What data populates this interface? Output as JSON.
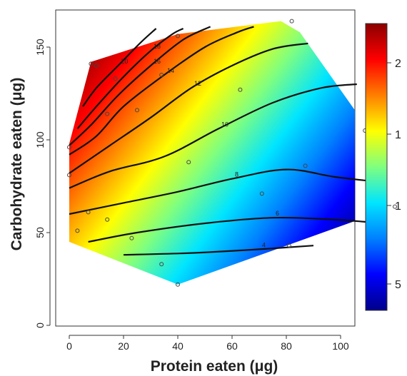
{
  "chart_data": {
    "type": "heatmap",
    "subtype": "filled-contour",
    "xlabel": "Protein eaten (μg)",
    "ylabel": "Carbohydrate eaten (μg)",
    "xlim": [
      -3,
      125
    ],
    "ylim": [
      0,
      168
    ],
    "x_ticks": [
      "0",
      "20",
      "40",
      "60",
      "80",
      "100"
    ],
    "y_ticks": [
      "0",
      "50",
      "100",
      "150"
    ],
    "grid": false,
    "legend": "colorbar-right",
    "colorbar_labels": [
      "2",
      "1",
      "1",
      "5"
    ],
    "colormap": [
      "#00008b",
      "#0000ff",
      "#0080ff",
      "#00e5ff",
      "#7fff7f",
      "#ffff00",
      "#ff7f00",
      "#ff0000",
      "#8b0000"
    ],
    "region": [
      [
        0,
        45
      ],
      [
        0,
        98
      ],
      [
        8,
        142
      ],
      [
        40,
        157
      ],
      [
        78,
        164
      ],
      [
        85,
        158
      ],
      [
        112,
        102
      ],
      [
        120,
        64
      ],
      [
        82,
        44
      ],
      [
        40,
        22
      ]
    ],
    "contour_levels": [
      "4",
      "6",
      "8",
      "10",
      "12",
      "14",
      "16",
      "18",
      "20"
    ],
    "contours": [
      {
        "level": "4",
        "points": [
          [
            20,
            38
          ],
          [
            45,
            39
          ],
          [
            70,
            41
          ],
          [
            90,
            43
          ]
        ]
      },
      {
        "level": "6",
        "points": [
          [
            7,
            45
          ],
          [
            25,
            50
          ],
          [
            50,
            55
          ],
          [
            75,
            58
          ],
          [
            98,
            57
          ],
          [
            115,
            55
          ]
        ]
      },
      {
        "level": "8",
        "points": [
          [
            0,
            60
          ],
          [
            20,
            66
          ],
          [
            40,
            72
          ],
          [
            60,
            79
          ],
          [
            80,
            84
          ],
          [
            98,
            80
          ],
          [
            116,
            77
          ]
        ]
      },
      {
        "level": "10",
        "points": [
          [
            0,
            74
          ],
          [
            15,
            83
          ],
          [
            35,
            91
          ],
          [
            55,
            106
          ],
          [
            75,
            120
          ],
          [
            93,
            128
          ],
          [
            106,
            130
          ]
        ]
      },
      {
        "level": "12",
        "points": [
          [
            0,
            82
          ],
          [
            15,
            97
          ],
          [
            30,
            112
          ],
          [
            45,
            128
          ],
          [
            60,
            140
          ],
          [
            75,
            149
          ],
          [
            88,
            152
          ]
        ]
      },
      {
        "level": "14",
        "points": [
          [
            0,
            92
          ],
          [
            10,
            102
          ],
          [
            20,
            118
          ],
          [
            35,
            135
          ],
          [
            50,
            150
          ],
          [
            62,
            158
          ],
          [
            68,
            161
          ]
        ]
      },
      {
        "level": "16",
        "points": [
          [
            0,
            97
          ],
          [
            8,
            108
          ],
          [
            18,
            124
          ],
          [
            30,
            140
          ],
          [
            42,
            154
          ],
          [
            52,
            161
          ]
        ]
      },
      {
        "level": "18",
        "points": [
          [
            3,
            106
          ],
          [
            10,
            118
          ],
          [
            20,
            134
          ],
          [
            30,
            148
          ],
          [
            38,
            157
          ],
          [
            42,
            160
          ]
        ]
      },
      {
        "level": "20",
        "points": [
          [
            5,
            118
          ],
          [
            10,
            128
          ],
          [
            18,
            140
          ],
          [
            26,
            152
          ],
          [
            32,
            160
          ]
        ]
      }
    ],
    "points": [
      [
        0,
        96
      ],
      [
        0,
        81
      ],
      [
        3,
        51
      ],
      [
        7,
        61
      ],
      [
        8,
        141
      ],
      [
        10,
        140
      ],
      [
        14,
        57
      ],
      [
        14,
        114
      ],
      [
        17,
        133
      ],
      [
        23,
        47
      ],
      [
        25,
        116
      ],
      [
        34,
        33
      ],
      [
        34,
        135
      ],
      [
        40,
        22
      ],
      [
        40,
        156
      ],
      [
        44,
        88
      ],
      [
        63,
        127
      ],
      [
        71,
        71
      ],
      [
        81,
        43
      ],
      [
        82,
        164
      ],
      [
        87,
        86
      ],
      [
        109,
        105
      ],
      [
        120,
        64
      ]
    ]
  }
}
